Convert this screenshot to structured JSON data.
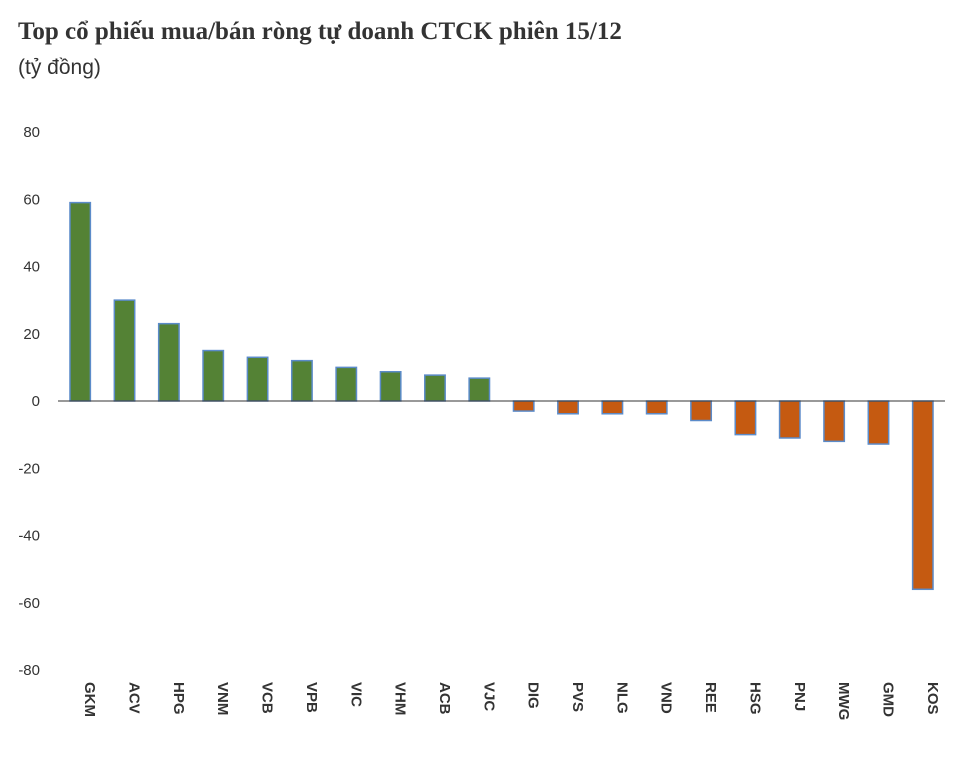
{
  "title": "Top cổ phiếu mua/bán ròng tự doanh CTCK phiên 15/12",
  "subtitle": "(tỷ đồng)",
  "colors": {
    "positive": "#548235",
    "negative": "#C55A11",
    "bar_outline": "#5B8BC9",
    "axis": "#333333"
  },
  "chart_data": {
    "type": "bar",
    "title": "Top cổ phiếu mua/bán ròng tự doanh CTCK phiên 15/12",
    "ylabel": "(tỷ đồng)",
    "xlabel": "",
    "ylim": [
      -80,
      80
    ],
    "yticks": [
      80,
      60,
      40,
      20,
      0,
      -20,
      -40,
      -60,
      -80
    ],
    "grid": false,
    "legend": "none",
    "categories": [
      "GKM",
      "ACV",
      "HPG",
      "VNM",
      "VCB",
      "VPB",
      "VIC",
      "VHM",
      "ACB",
      "VJC",
      "DIG",
      "PVS",
      "NLG",
      "VND",
      "REE",
      "HSG",
      "PNJ",
      "MWG",
      "GMD",
      "KOS"
    ],
    "values": [
      59,
      30,
      23,
      15,
      13,
      12,
      10,
      8.7,
      7.7,
      6.8,
      -3,
      -3.8,
      -3.8,
      -3.8,
      -5.8,
      -10,
      -11,
      -12,
      -12.8,
      -56
    ]
  }
}
